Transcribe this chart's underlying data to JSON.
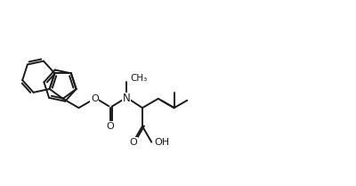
{
  "background_color": "#ffffff",
  "line_color": "#1a1a1a",
  "line_width": 1.4,
  "figsize": [
    4.0,
    2.09
  ],
  "dpi": 100,
  "xlim": [
    0,
    10
  ],
  "ylim": [
    0,
    5.5
  ]
}
